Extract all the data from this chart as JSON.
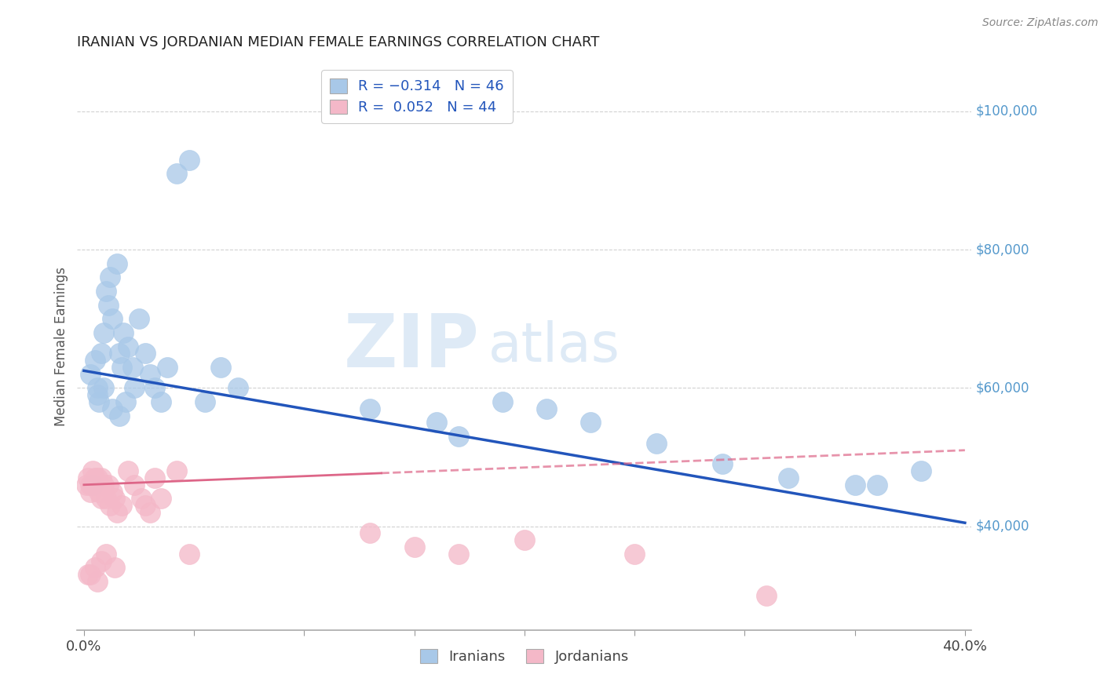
{
  "title": "IRANIAN VS JORDANIAN MEDIAN FEMALE EARNINGS CORRELATION CHART",
  "source": "Source: ZipAtlas.com",
  "ylabel": "Median Female Earnings",
  "xlim": [
    -0.003,
    0.403
  ],
  "ylim": [
    25000,
    107000
  ],
  "yticks": [
    40000,
    60000,
    80000,
    100000
  ],
  "xticks": [
    0.0,
    0.05,
    0.1,
    0.15,
    0.2,
    0.25,
    0.3,
    0.35,
    0.4
  ],
  "xtick_labels": [
    "0.0%",
    "",
    "",
    "",
    "",
    "",
    "",
    "",
    "40.0%"
  ],
  "watermark": "ZIPatlas",
  "iranians_color": "#a8c8e8",
  "jordanians_color": "#f4b8c8",
  "iranians_line_color": "#2255bb",
  "jordanians_line_color": "#dd6688",
  "background_color": "#ffffff",
  "grid_color": "#cccccc",
  "right_axis_color": "#5599cc",
  "iranians_x": [
    0.003,
    0.005,
    0.006,
    0.007,
    0.008,
    0.009,
    0.01,
    0.011,
    0.012,
    0.013,
    0.015,
    0.016,
    0.017,
    0.018,
    0.02,
    0.022,
    0.025,
    0.028,
    0.03,
    0.032,
    0.035,
    0.038,
    0.042,
    0.048,
    0.055,
    0.062,
    0.07,
    0.13,
    0.16,
    0.19,
    0.21,
    0.23,
    0.26,
    0.29,
    0.32,
    0.36,
    0.38,
    0.004,
    0.006,
    0.009,
    0.013,
    0.016,
    0.019,
    0.023,
    0.17,
    0.35
  ],
  "iranians_y": [
    62000,
    64000,
    60000,
    58000,
    65000,
    68000,
    74000,
    72000,
    76000,
    70000,
    78000,
    65000,
    63000,
    68000,
    66000,
    63000,
    70000,
    65000,
    62000,
    60000,
    58000,
    63000,
    91000,
    93000,
    58000,
    63000,
    60000,
    57000,
    55000,
    58000,
    57000,
    55000,
    52000,
    49000,
    47000,
    46000,
    48000,
    46000,
    59000,
    60000,
    57000,
    56000,
    58000,
    60000,
    53000,
    46000
  ],
  "jordanians_x": [
    0.001,
    0.002,
    0.003,
    0.003,
    0.004,
    0.004,
    0.005,
    0.005,
    0.006,
    0.006,
    0.007,
    0.007,
    0.008,
    0.008,
    0.009,
    0.01,
    0.011,
    0.012,
    0.013,
    0.014,
    0.015,
    0.017,
    0.02,
    0.023,
    0.026,
    0.028,
    0.03,
    0.032,
    0.035,
    0.042,
    0.048,
    0.13,
    0.15,
    0.17,
    0.2,
    0.25,
    0.002,
    0.003,
    0.005,
    0.006,
    0.008,
    0.01,
    0.014,
    0.31
  ],
  "jordanians_y": [
    46000,
    47000,
    46000,
    45000,
    46000,
    48000,
    47000,
    46000,
    46000,
    47000,
    46000,
    45000,
    47000,
    44000,
    46000,
    44000,
    46000,
    43000,
    45000,
    44000,
    42000,
    43000,
    48000,
    46000,
    44000,
    43000,
    42000,
    47000,
    44000,
    48000,
    36000,
    39000,
    37000,
    36000,
    38000,
    36000,
    33000,
    33000,
    34000,
    32000,
    35000,
    36000,
    34000,
    30000
  ]
}
